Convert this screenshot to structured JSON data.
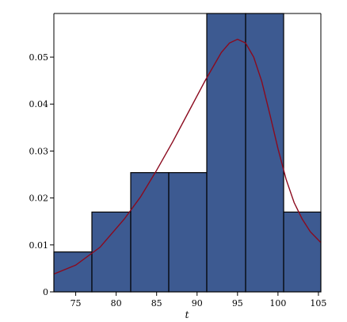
{
  "chart_data": {
    "type": "bar",
    "title": "",
    "xlabel": "t",
    "ylabel": "",
    "xlim": [
      72.3,
      105.3
    ],
    "ylim": [
      0,
      0.0593
    ],
    "grid": false,
    "x_ticks": [
      75,
      80,
      85,
      90,
      95,
      100,
      105
    ],
    "y_ticks": [
      0,
      0.01,
      0.02,
      0.03,
      0.04,
      0.05
    ],
    "y_tick_labels": [
      "0",
      "0.01",
      "0.02",
      "0.03",
      "0.04",
      "0.05"
    ],
    "bins": [
      {
        "x0": 72.3,
        "x1": 77.0,
        "value": 0.0085
      },
      {
        "x0": 77.0,
        "x1": 81.8,
        "value": 0.017
      },
      {
        "x0": 81.8,
        "x1": 86.5,
        "value": 0.0254
      },
      {
        "x0": 86.5,
        "x1": 91.2,
        "value": 0.0254
      },
      {
        "x0": 91.2,
        "x1": 96.0,
        "value": 0.0593
      },
      {
        "x0": 96.0,
        "x1": 100.7,
        "value": 0.0593
      },
      {
        "x0": 100.7,
        "x1": 105.3,
        "value": 0.017
      }
    ],
    "bar_color": "#3d5a91",
    "bar_edge_color": "#000000",
    "curve": {
      "color": "#8b0a1e",
      "type": "skew-normal density",
      "points": [
        [
          72.3,
          0.0038
        ],
        [
          75.0,
          0.0057
        ],
        [
          78.0,
          0.0095
        ],
        [
          81.0,
          0.0155
        ],
        [
          83.0,
          0.0202
        ],
        [
          85.0,
          0.0259
        ],
        [
          87.0,
          0.032
        ],
        [
          89.0,
          0.0385
        ],
        [
          91.0,
          0.045
        ],
        [
          93.0,
          0.051
        ],
        [
          94.0,
          0.053
        ],
        [
          95.0,
          0.0538
        ],
        [
          96.0,
          0.053
        ],
        [
          97.0,
          0.05
        ],
        [
          98.0,
          0.0448
        ],
        [
          99.0,
          0.0378
        ],
        [
          100.0,
          0.0305
        ],
        [
          101.0,
          0.024
        ],
        [
          102.0,
          0.019
        ],
        [
          103.0,
          0.0155
        ],
        [
          104.0,
          0.0128
        ],
        [
          105.3,
          0.0105
        ]
      ]
    }
  }
}
